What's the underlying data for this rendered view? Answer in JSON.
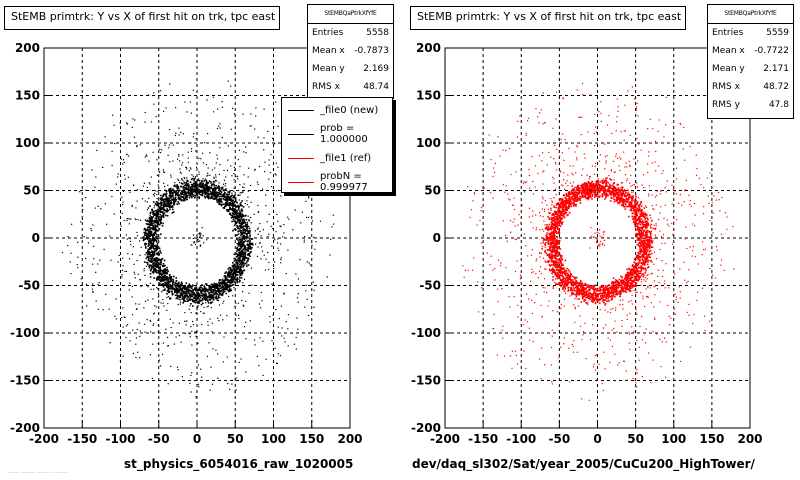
{
  "chart_data": [
    {
      "type": "scatter",
      "title": "StEMB primtrk: Y vs X of first hit on trk, tpc east",
      "xlim": [
        -200,
        200
      ],
      "ylim": [
        -200,
        200
      ],
      "x_ticks": [
        -200,
        -150,
        -100,
        -50,
        0,
        50,
        100,
        150,
        200
      ],
      "y_ticks": [
        -200,
        -150,
        -100,
        -50,
        0,
        50,
        100,
        150,
        200
      ],
      "grid": true,
      "marker_color": "#000000",
      "stats": {
        "name": "StEMBQaPtrkXfYfE",
        "entries": "5558",
        "mean_x": "-0.7873",
        "mean_y": "2.169",
        "rms_x": "48.74"
      },
      "legend": [
        {
          "label": "_file0 (new)",
          "color": "#000000"
        },
        {
          "label": "prob = 1.000000",
          "color": "#000000"
        },
        {
          "label": "_file1 (ref)",
          "color": "#ff0000"
        },
        {
          "label": "probN = 0.999977",
          "color": "#ff0000"
        }
      ],
      "legend_position": "top-right",
      "footer": "st_physics_6054016_raw_1020005"
    },
    {
      "type": "scatter",
      "title": "StEMB primtrk: Y vs X of first hit on trk, tpc east",
      "xlim": [
        -200,
        200
      ],
      "ylim": [
        -200,
        200
      ],
      "x_ticks": [
        -200,
        -150,
        -100,
        -50,
        0,
        50,
        100,
        150,
        200
      ],
      "y_ticks": [
        -200,
        -150,
        -100,
        -50,
        0,
        50,
        100,
        150,
        200
      ],
      "grid": true,
      "marker_color": "#ff0000",
      "stats": {
        "name": "StEMBQaPtrkXfYfE",
        "entries": "5559",
        "mean_x": "-0.7722",
        "mean_y": "2.171",
        "rms_x": "48.72",
        "rms_y": "47.8"
      },
      "footer": "dev/daq_sl302/Sat/year_2005/CuCu200_HighTower/"
    }
  ],
  "stats_labels": {
    "entries": "Entries",
    "mean_x": "Mean x",
    "mean_y": "Mean y",
    "rms_x": "RMS x",
    "rms_y": "RMS y"
  },
  "corner_text": "...... ....... ........ ......."
}
